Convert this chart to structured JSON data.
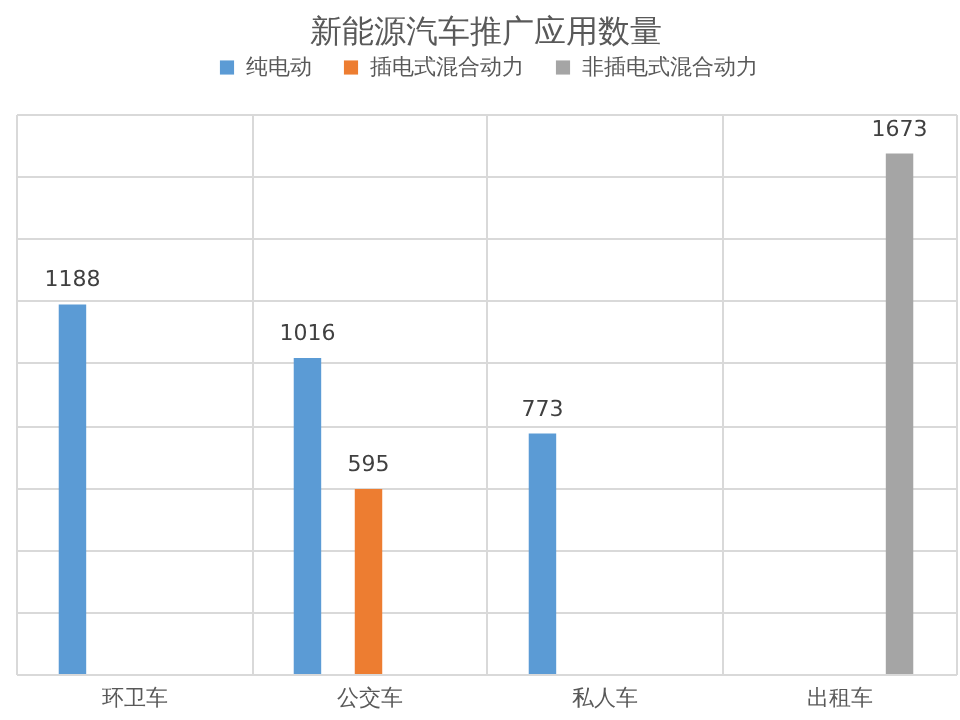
{
  "chart_data": {
    "type": "bar",
    "title": "新能源汽车推广应用数量",
    "categories": [
      "环卫车",
      "公交车",
      "私人车",
      "出租车"
    ],
    "series": [
      {
        "name": "纯电动",
        "color": "#5b9bd5",
        "values": [
          1188,
          1016,
          773,
          null
        ]
      },
      {
        "name": "插电式混合动力",
        "color": "#ed7d31",
        "values": [
          null,
          595,
          null,
          null
        ]
      },
      {
        "name": "非插电式混合动力",
        "color": "#a5a5a5",
        "values": [
          null,
          null,
          null,
          1673
        ]
      }
    ],
    "ylim": [
      0,
      1800
    ],
    "yticks": [
      {
        "value": 0,
        "label": null
      },
      {
        "value": 200,
        "label": null
      },
      {
        "value": 400,
        "label": null
      },
      {
        "value": 600,
        "label": null
      },
      {
        "value": 800,
        "label": null
      },
      {
        "value": 1000,
        "label": null
      },
      {
        "value": 1200,
        "label": null
      },
      {
        "value": 1400,
        "label": null
      },
      {
        "value": 1600,
        "label": null
      },
      {
        "value": 1800,
        "label": null
      }
    ],
    "tick_labels": "x",
    "grid": true,
    "legend": "top",
    "data_labels": true
  }
}
